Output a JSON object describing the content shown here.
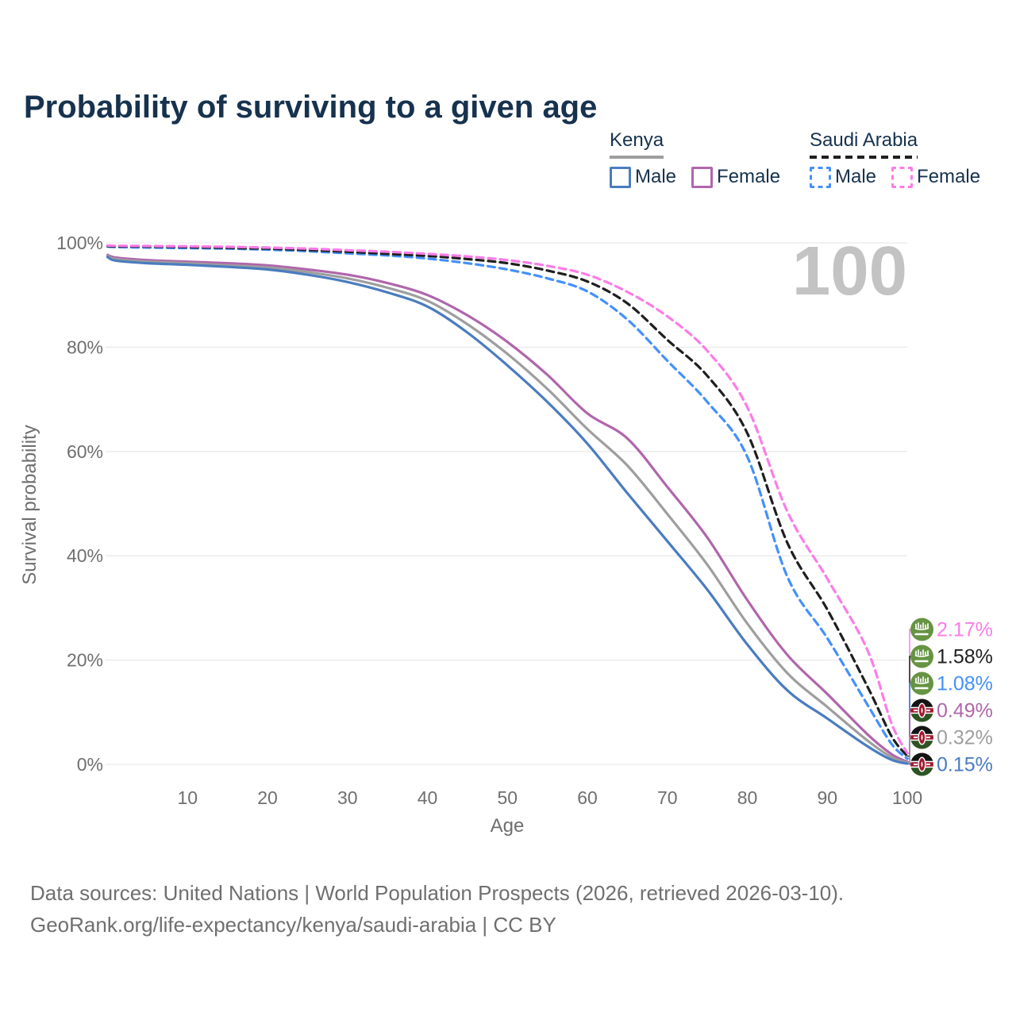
{
  "title": "Probability of surviving to a given age",
  "watermark_age": "100",
  "legend": {
    "groups": [
      {
        "country": "Kenya",
        "line_style": "solid",
        "line_color": "#9e9e9e",
        "items": [
          {
            "label": "Male",
            "color": "#4a7cbf",
            "dashed": false
          },
          {
            "label": "Female",
            "color": "#b066ab",
            "dashed": false
          }
        ]
      },
      {
        "country": "Saudi Arabia",
        "line_style": "dashed",
        "line_color": "#1f1f1f",
        "items": [
          {
            "label": "Male",
            "color": "#4490fa",
            "dashed": true
          },
          {
            "label": "Female",
            "color": "#fb7ce8",
            "dashed": true
          }
        ]
      }
    ]
  },
  "axes": {
    "y_title": "Survival probability",
    "x_title": "Age",
    "y_ticks": [
      {
        "value": 0,
        "label": "0%"
      },
      {
        "value": 20,
        "label": "20%"
      },
      {
        "value": 40,
        "label": "40%"
      },
      {
        "value": 60,
        "label": "60%"
      },
      {
        "value": 80,
        "label": "80%"
      },
      {
        "value": 100,
        "label": "100%"
      }
    ],
    "x_ticks": [
      {
        "value": 10,
        "label": "10"
      },
      {
        "value": 20,
        "label": "20"
      },
      {
        "value": 30,
        "label": "30"
      },
      {
        "value": 40,
        "label": "40"
      },
      {
        "value": 50,
        "label": "50"
      },
      {
        "value": 60,
        "label": "60"
      },
      {
        "value": 70,
        "label": "70"
      },
      {
        "value": 80,
        "label": "80"
      },
      {
        "value": 90,
        "label": "90"
      },
      {
        "value": 100,
        "label": "100"
      }
    ]
  },
  "footer": {
    "line1": "Data sources: United Nations | World Population Prospects (2026, retrieved 2026-03-10).",
    "line2": "GeoRank.org/life-expectancy/kenya/saudi-arabia | CC BY"
  },
  "chart_data": {
    "type": "line",
    "title": "Probability of surviving to a given age",
    "xlabel": "Age",
    "ylabel": "Survival probability",
    "xlim": [
      0,
      100
    ],
    "ylim": [
      0,
      100
    ],
    "grid": "horizontal",
    "x": [
      0,
      1,
      5,
      10,
      15,
      20,
      25,
      30,
      35,
      40,
      45,
      50,
      55,
      60,
      65,
      70,
      75,
      80,
      85,
      90,
      95,
      98,
      100
    ],
    "series": [
      {
        "name": "Kenya Female",
        "country": "Kenya",
        "sex": "female",
        "color": "#b066ab",
        "dash": false,
        "flag": "kenya",
        "end_label": "0.49%",
        "values": [
          97.7,
          97.2,
          96.7,
          96.4,
          96.1,
          95.7,
          94.9,
          93.9,
          92.3,
          90.0,
          86.1,
          81.0,
          74.7,
          67.3,
          62.5,
          53.2,
          43.5,
          31.5,
          21.0,
          13.5,
          5.8,
          2.0,
          0.49
        ]
      },
      {
        "name": "Kenya Both sexes",
        "country": "Kenya",
        "sex": "all",
        "color": "#9e9e9e",
        "dash": false,
        "flag": "kenya",
        "end_label": "0.32%",
        "values": [
          97.5,
          96.9,
          96.4,
          96.1,
          95.7,
          95.3,
          94.4,
          93.2,
          91.4,
          88.9,
          84.4,
          78.7,
          72.0,
          64.3,
          57.3,
          48.0,
          38.3,
          27.0,
          17.5,
          11.0,
          4.6,
          1.4,
          0.32
        ]
      },
      {
        "name": "Kenya Male",
        "country": "Kenya",
        "sex": "male",
        "color": "#4a7cbf",
        "dash": false,
        "flag": "kenya",
        "end_label": "0.15%",
        "values": [
          97.3,
          96.6,
          96.1,
          95.8,
          95.4,
          94.9,
          93.9,
          92.5,
          90.5,
          87.8,
          82.8,
          76.5,
          69.5,
          61.5,
          52.0,
          42.8,
          33.5,
          23.0,
          14.2,
          8.8,
          3.5,
          0.9,
          0.15
        ]
      },
      {
        "name": "Saudi Arabia Male",
        "country": "Saudi Arabia",
        "sex": "male",
        "color": "#4490fa",
        "dash": true,
        "flag": "saudi-arabia",
        "end_label": "1.08%",
        "values": [
          99.3,
          99.2,
          99.1,
          99.0,
          98.9,
          98.7,
          98.4,
          98.0,
          97.6,
          97.0,
          96.1,
          94.9,
          93.2,
          90.7,
          85.3,
          77.4,
          69.5,
          59.0,
          36.0,
          24.2,
          11.5,
          4.0,
          1.08
        ]
      },
      {
        "name": "Saudi Arabia Both sexes",
        "country": "Saudi Arabia",
        "sex": "all",
        "color": "#1f1f1f",
        "dash": true,
        "flag": "saudi-arabia",
        "end_label": "1.58%",
        "values": [
          99.4,
          99.35,
          99.3,
          99.2,
          99.05,
          98.9,
          98.65,
          98.3,
          97.9,
          97.5,
          96.9,
          96.1,
          94.7,
          92.6,
          88.4,
          81.4,
          74.5,
          63.5,
          42.5,
          29.7,
          15.0,
          5.5,
          1.58
        ]
      },
      {
        "name": "Saudi Arabia Female",
        "country": "Saudi Arabia",
        "sex": "female",
        "color": "#fb7ce8",
        "dash": true,
        "flag": "saudi-arabia",
        "end_label": "2.17%",
        "values": [
          99.5,
          99.45,
          99.4,
          99.35,
          99.25,
          99.1,
          98.9,
          98.6,
          98.3,
          97.9,
          97.4,
          96.7,
          95.6,
          93.9,
          90.6,
          85.9,
          79.3,
          68.5,
          48.5,
          35.6,
          22.0,
          8.0,
          2.17
        ]
      }
    ]
  }
}
